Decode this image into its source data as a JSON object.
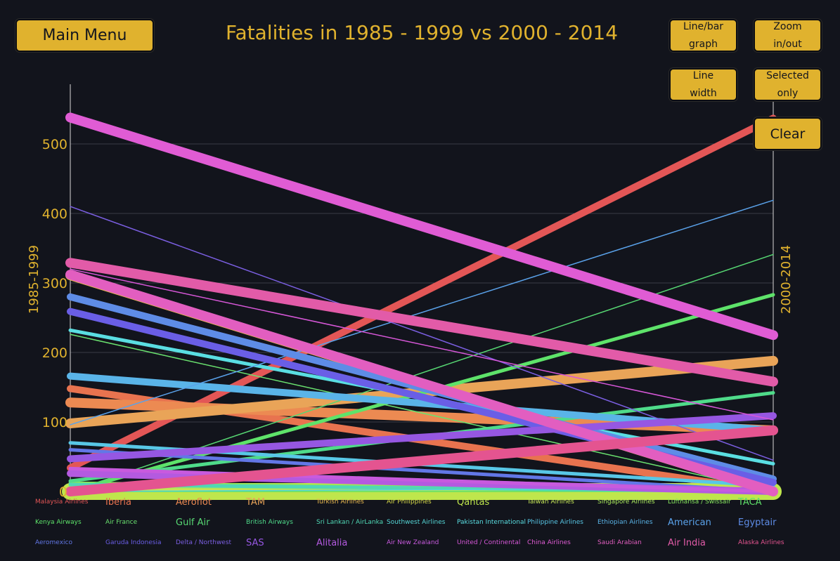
{
  "header": {
    "title": "Fatalities in 1985 - 1999 vs 2000 - 2014"
  },
  "buttons": {
    "main_menu": "Main Menu",
    "line_bar_1": "Line/bar",
    "line_bar_2": "graph",
    "zoom_1": "Zoom",
    "zoom_2": "in/out",
    "width_1": "Line",
    "width_2": "width",
    "selected_1": "Selected",
    "selected_2": "only",
    "clear": "Clear"
  },
  "colors": {
    "accent": "#e0b22e",
    "background": "#12141c"
  },
  "chart_data": {
    "type": "line",
    "title": "Fatalities in 1985 - 1999 vs 2000 - 2014",
    "left_axis_label": "1985-1999",
    "right_axis_label": "2000-2014",
    "ylim": [
      0,
      580
    ],
    "yticks": [
      0,
      100,
      200,
      300,
      400,
      500
    ],
    "grid": true,
    "series": [
      {
        "name": "Malaysia Airlines",
        "start": 34,
        "end": 537,
        "color": "#e35656",
        "weight": 3
      },
      {
        "name": "Iberia",
        "start": 148,
        "end": 0,
        "color": "#e8734f",
        "weight": 3
      },
      {
        "name": "Aeroflot",
        "start": 128,
        "end": 88,
        "color": "#ec8a52",
        "weight": 4
      },
      {
        "name": "TAM",
        "start": 98,
        "end": 188,
        "color": "#e9a458",
        "weight": 4
      },
      {
        "name": "Turkish Airlines",
        "start": 311,
        "end": 0,
        "color": "#e9b94f",
        "weight": 4
      },
      {
        "name": "Air Philippines",
        "start": 3,
        "end": 0,
        "color": "#d5d848",
        "weight": 1
      },
      {
        "name": "Qantas",
        "start": 0,
        "end": 0,
        "color": "#bfe64c",
        "weight": 5
      },
      {
        "name": "Taiwan Airlines",
        "start": 5,
        "end": 0,
        "color": "#c4e656",
        "weight": 2
      },
      {
        "name": "Singapore Airlines",
        "start": 8,
        "end": 0,
        "color": "#a9e85c",
        "weight": 2
      },
      {
        "name": "Lufthansa / Swissair",
        "start": 12,
        "end": 0,
        "color": "#86e65e",
        "weight": 2
      },
      {
        "name": "TACA",
        "start": 0,
        "end": 0,
        "color": "#5fe069",
        "weight": 1
      },
      {
        "name": "Kenya Airways",
        "start": 0,
        "end": 283,
        "color": "#5ee36a",
        "weight": 2
      },
      {
        "name": "Air France",
        "start": 226,
        "end": 0,
        "color": "#6ae26f",
        "weight": 1
      },
      {
        "name": "Gulf Air",
        "start": 0,
        "end": 341,
        "color": "#57d873",
        "weight": 1
      },
      {
        "name": "British Airways",
        "start": 15,
        "end": 142,
        "color": "#4fdb8a",
        "weight": 2
      },
      {
        "name": "Sri Lankan / AirLanka",
        "start": 10,
        "end": 0,
        "color": "#50d8b5",
        "weight": 2
      },
      {
        "name": "Southwest Airlines",
        "start": 0,
        "end": 5,
        "color": "#55d6d6",
        "weight": 1
      },
      {
        "name": "Pakistan International",
        "start": 232,
        "end": 40,
        "color": "#5adee2",
        "weight": 2
      },
      {
        "name": "Philippine Airlines",
        "start": 70,
        "end": 8,
        "color": "#58c7e6",
        "weight": 2
      },
      {
        "name": "Ethiopian Airlines",
        "start": 166,
        "end": 88,
        "color": "#5ab4e8",
        "weight": 3
      },
      {
        "name": "American",
        "start": 96,
        "end": 419,
        "color": "#5aa2ea",
        "weight": 1
      },
      {
        "name": "Egyptair",
        "start": 280,
        "end": 18,
        "color": "#5e8ce6",
        "weight": 3
      },
      {
        "name": "Aeromexico",
        "start": 60,
        "end": 0,
        "color": "#6277e6",
        "weight": 2
      },
      {
        "name": "Garuda Indonesia",
        "start": 259,
        "end": 13,
        "color": "#6a5ee6",
        "weight": 3
      },
      {
        "name": "Delta / Northwest",
        "start": 410,
        "end": 45,
        "color": "#7b5fe2",
        "weight": 1
      },
      {
        "name": "SAS",
        "start": 47,
        "end": 109,
        "color": "#9657e2",
        "weight": 3
      },
      {
        "name": "Alitalia",
        "start": 26,
        "end": 0,
        "color": "#b45ae0",
        "weight": 3
      },
      {
        "name": "Air New Zealand",
        "start": 33,
        "end": 0,
        "color": "#c85ade",
        "weight": 2
      },
      {
        "name": "United / Continental",
        "start": 320,
        "end": 103,
        "color": "#d757d8",
        "weight": 1
      },
      {
        "name": "China Airlines",
        "start": 538,
        "end": 225,
        "color": "#e05cd4",
        "weight": 4
      },
      {
        "name": "Saudi Arabian",
        "start": 312,
        "end": 0,
        "color": "#e25ec0",
        "weight": 4
      },
      {
        "name": "Air India",
        "start": 329,
        "end": 158,
        "color": "#e25ba8",
        "weight": 4
      },
      {
        "name": "Alaska Airlines",
        "start": 0,
        "end": 88,
        "color": "#e45490",
        "weight": 4
      }
    ]
  }
}
